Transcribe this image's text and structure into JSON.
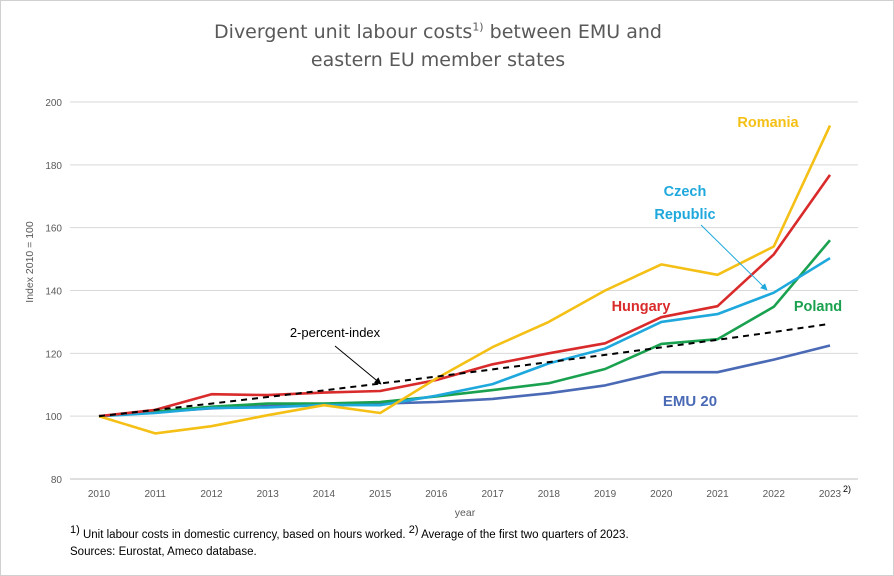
{
  "title": {
    "line1_text": "Divergent unit labour costs",
    "line1_sup": "1)",
    "line1_end": " between EMU and",
    "line2": "eastern EU member states"
  },
  "footnotes": {
    "line1_sup1": "1)",
    "line1_text1": " Unit labour costs in domestic currency, based on hours worked. ",
    "line1_sup2": "2)",
    "line1_text2": " Average of the first two quarters of 2023.",
    "line2": "Sources: Eurostat, Ameco database."
  },
  "chart_data": {
    "type": "line",
    "title": "Divergent unit labour costs 1) between EMU and eastern EU member states",
    "xlabel": "year",
    "ylabel": "Index 2010 = 100",
    "ylim": [
      80,
      200
    ],
    "yticks": [
      80,
      100,
      120,
      140,
      160,
      180,
      200
    ],
    "x": [
      "2010",
      "2011",
      "2012",
      "2013",
      "2014",
      "2015",
      "2016",
      "2017",
      "2018",
      "2019",
      "2020",
      "2021",
      "2022",
      "2023"
    ],
    "x_last_note": "2)",
    "grid": "horizontal",
    "series": [
      {
        "name": "Romania",
        "color": "#F5C016",
        "dashed": false,
        "values": [
          100,
          94.5,
          96.8,
          100.3,
          103.5,
          101,
          112,
          122,
          130,
          140,
          148.3,
          145,
          154,
          192.5
        ]
      },
      {
        "name": "Hungary",
        "color": "#D92B2B",
        "dashed": false,
        "values": [
          100,
          102,
          107,
          106.7,
          107.5,
          108,
          111.5,
          116.5,
          120,
          123.2,
          131.5,
          135,
          151.5,
          176.8
        ]
      },
      {
        "name": "Czech Republic",
        "color": "#1EA8DC",
        "dashed": false,
        "values": [
          100,
          101,
          102.6,
          102.8,
          103.6,
          103.5,
          106.5,
          110.2,
          116.8,
          121.5,
          130,
          132.5,
          139.3,
          150.3
        ]
      },
      {
        "name": "Poland",
        "color": "#1AA14F",
        "dashed": false,
        "values": [
          100,
          101.5,
          103,
          104,
          104,
          104.5,
          106.3,
          108.3,
          110.5,
          115,
          123,
          124.5,
          134.8,
          156
        ]
      },
      {
        "name": "EMU 20",
        "color": "#4A6AB5",
        "dashed": false,
        "values": [
          100,
          101.3,
          102.5,
          103.2,
          103.8,
          104,
          104.5,
          105.5,
          107.3,
          109.8,
          114,
          114,
          118,
          122.5
        ]
      },
      {
        "name": "2-percent-index",
        "color": "#000000",
        "dashed": true,
        "values": [
          100,
          102,
          104,
          106.1,
          108.2,
          110.4,
          112.6,
          114.9,
          117.2,
          119.5,
          121.9,
          124.3,
          126.8,
          129.4
        ]
      }
    ],
    "annotations": [
      {
        "text": "Romania",
        "color": "#F5C016"
      },
      {
        "text": "Czech",
        "color": "#1EA8DC"
      },
      {
        "text": "Republic",
        "color": "#1EA8DC"
      },
      {
        "text": "Hungary",
        "color": "#D92B2B"
      },
      {
        "text": "Poland",
        "color": "#1AA14F"
      },
      {
        "text": "EMU 20",
        "color": "#4A6AB5"
      },
      {
        "text": "2-percent-index",
        "color": "#000000"
      }
    ]
  }
}
